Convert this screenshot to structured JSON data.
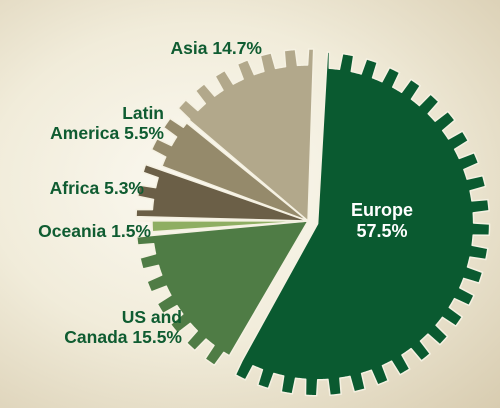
{
  "chart_data": {
    "type": "pie",
    "title": "",
    "style": "gear-shaped pie with sawtooth outer edge and one exploded slice",
    "slices": [
      {
        "name": "Europe",
        "value": 57.5,
        "label_lines": [
          "Europe",
          "57.5%"
        ],
        "color": "#0a5a30"
      },
      {
        "name": "US and Canada",
        "value": 15.5,
        "label_lines": [
          "US and",
          "Canada 15.5%"
        ],
        "color": "#4f7c45"
      },
      {
        "name": "Oceania",
        "value": 1.5,
        "label_lines": [
          "Oceania 1.5%"
        ],
        "color": "#8fae62"
      },
      {
        "name": "Africa",
        "value": 5.3,
        "label_lines": [
          "Africa 5.3%"
        ],
        "color": "#6b5f47"
      },
      {
        "name": "Latin America",
        "value": 5.5,
        "label_lines": [
          "Latin",
          "America 5.5%"
        ],
        "color": "#958a6b"
      },
      {
        "name": "Asia",
        "value": 14.7,
        "label_lines": [
          "Asia 14.7%"
        ],
        "color": "#b2a88b"
      }
    ]
  }
}
